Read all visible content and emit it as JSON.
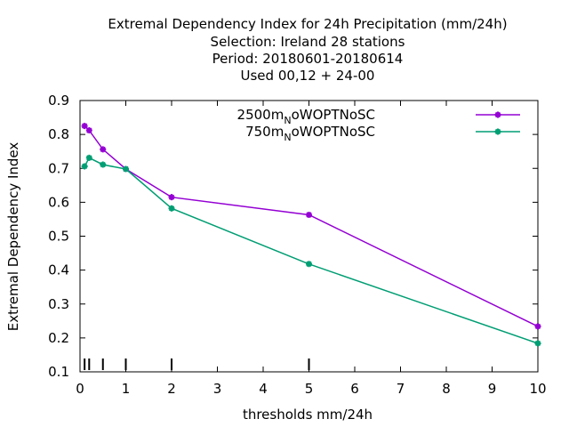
{
  "chart_data": {
    "type": "line",
    "title_lines": [
      "Extremal Dependency Index  for 24h Precipitation (mm/24h)",
      "Selection: Ireland      28 stations",
      "Period: 20180601-20180614",
      "Used  00,12  + 24-00"
    ],
    "xlabel": "thresholds mm/24h",
    "ylabel": "Extremal Dependency Index",
    "xlim": [
      0,
      10
    ],
    "ylim": [
      0.1,
      0.9
    ],
    "x_ticks": [
      0,
      1,
      2,
      3,
      4,
      5,
      6,
      7,
      8,
      9,
      10
    ],
    "y_ticks": [
      "0.1",
      "0.2",
      "0.3",
      "0.4",
      "0.5",
      "0.6",
      "0.7",
      "0.8",
      "0.9"
    ],
    "threshold_marks": [
      0.1,
      0.2,
      0.5,
      1,
      2,
      5
    ],
    "grid": false,
    "legend_position": "top-right",
    "series": [
      {
        "legend_main": "2500m",
        "legend_sub": "N",
        "legend_suffix": "oWOPTNoSC",
        "color": "#9400d3",
        "x": [
          0.1,
          0.2,
          0.5,
          1,
          2,
          5,
          10
        ],
        "y": [
          0.825,
          0.812,
          0.756,
          0.698,
          0.615,
          0.563,
          0.234
        ]
      },
      {
        "legend_main": "750m",
        "legend_sub": "N",
        "legend_suffix": "oWOPTNoSC",
        "color": "#009e73",
        "x": [
          0.1,
          0.2,
          0.5,
          1,
          2,
          5,
          10
        ],
        "y": [
          0.706,
          0.731,
          0.711,
          0.698,
          0.582,
          0.418,
          0.184
        ]
      }
    ]
  }
}
